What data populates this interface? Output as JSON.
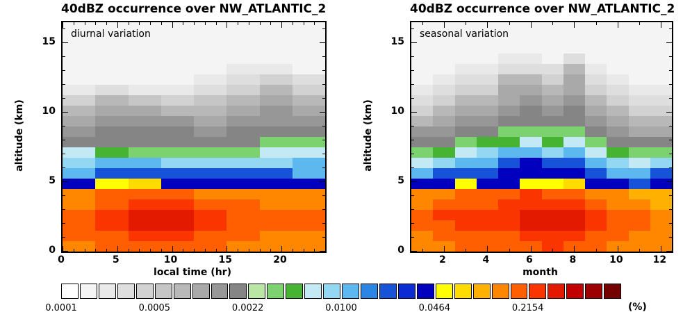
{
  "figure": {
    "background": "#ffffff"
  },
  "colorbar": {
    "scale": "log",
    "tick_labels": [
      "0.0001",
      "0.0005",
      "0.0022",
      "0.0100",
      "0.0464",
      "0.2154"
    ],
    "unit_label": "(%)",
    "value_range": [
      0.0001,
      1.0
    ],
    "colors": [
      "#ffffff",
      "#f4f4f4",
      "#e9e9e9",
      "#dedede",
      "#d2d2d2",
      "#c6c6c6",
      "#b8b8b8",
      "#a9a9a9",
      "#979797",
      "#858585",
      "#b9e6a5",
      "#7cd26e",
      "#46b432",
      "#c3e9f5",
      "#93d7f2",
      "#5cb8ee",
      "#2a86e2",
      "#1753d8",
      "#0b2cd2",
      "#0000be",
      "#ffff00",
      "#ffdc00",
      "#ffb000",
      "#ff8700",
      "#ff5f00",
      "#fb3500",
      "#e31a00",
      "#c30000",
      "#9d0000",
      "#750000"
    ]
  },
  "chart_data": [
    {
      "type": "heatmap",
      "title": "40dBZ occurrence over NW_ATLANTIC_2",
      "annotation": "diurnal variation",
      "xlabel": "local time (hr)",
      "ylabel": "altitude (km)",
      "units": "%",
      "x_range": [
        0,
        24
      ],
      "x_major_ticks": [
        0,
        5,
        10,
        15,
        20
      ],
      "x_minor_step": 1,
      "x_bin_width_hr": 3,
      "y_range": [
        0,
        16.5
      ],
      "y_major_ticks": [
        0,
        5,
        10,
        15
      ],
      "y_minor_step": 1,
      "y_bin_width_km": 0.75,
      "values_rows_bottom_to_top": [
        [
          0.13,
          0.19,
          0.19,
          0.19,
          0.19,
          0.13,
          0.13,
          0.13
        ],
        [
          0.19,
          0.19,
          0.26,
          0.26,
          0.19,
          0.19,
          0.13,
          0.13
        ],
        [
          0.19,
          0.26,
          0.33,
          0.33,
          0.26,
          0.19,
          0.19,
          0.19
        ],
        [
          0.19,
          0.26,
          0.33,
          0.33,
          0.26,
          0.19,
          0.19,
          0.19
        ],
        [
          0.13,
          0.19,
          0.26,
          0.26,
          0.19,
          0.19,
          0.13,
          0.13
        ],
        [
          0.13,
          0.19,
          0.19,
          0.19,
          0.13,
          0.13,
          0.13,
          0.13
        ],
        [
          0.038,
          0.055,
          0.075,
          0.038,
          0.038,
          0.038,
          0.038,
          0.038
        ],
        [
          0.012,
          0.02,
          0.02,
          0.02,
          0.02,
          0.02,
          0.02,
          0.012
        ],
        [
          0.008,
          0.012,
          0.012,
          0.008,
          0.008,
          0.008,
          0.008,
          0.012
        ],
        [
          0.006,
          0.0045,
          0.003,
          0.003,
          0.003,
          0.003,
          0.006,
          0.006
        ],
        [
          0.0018,
          0.0018,
          0.0018,
          0.0018,
          0.0018,
          0.0018,
          0.003,
          0.003
        ],
        [
          0.0013,
          0.0018,
          0.0018,
          0.0018,
          0.0013,
          0.0018,
          0.0018,
          0.0018
        ],
        [
          0.001,
          0.0013,
          0.0013,
          0.0013,
          0.001,
          0.0013,
          0.0013,
          0.0013
        ],
        [
          0.0007,
          0.001,
          0.001,
          0.0007,
          0.0007,
          0.001,
          0.0013,
          0.001
        ],
        [
          0.0004,
          0.0007,
          0.00055,
          0.0004,
          0.00055,
          0.0007,
          0.001,
          0.0007
        ],
        [
          0.00022,
          0.0003,
          0.00022,
          0.00022,
          0.0003,
          0.0004,
          0.0007,
          0.0004
        ],
        [
          0.00016,
          0.00016,
          0.00016,
          0.00016,
          0.00022,
          0.0003,
          0.0004,
          0.0003
        ],
        [
          0.00016,
          0.00016,
          0.00016,
          0.00016,
          0.00016,
          0.00022,
          0.00022,
          0.00016
        ],
        [
          0.00016,
          0.00016,
          0.00016,
          0.00016,
          0.00016,
          0.00016,
          0.00016,
          0.00016
        ],
        [
          0.00016,
          0.00016,
          0.00016,
          0.00016,
          0.00016,
          0.00016,
          0.00016,
          0.00016
        ],
        [
          0.00016,
          0.00016,
          0.00016,
          0.00016,
          0.00016,
          0.00016,
          0.00016,
          0.00016
        ],
        [
          0.00016,
          0.00016,
          0.00016,
          0.00016,
          0.00016,
          0.00016,
          0.00016,
          0.00016
        ]
      ]
    },
    {
      "type": "heatmap",
      "title": "40dBZ occurrence over NW_ATLANTIC_2",
      "annotation": "seasonal variation",
      "xlabel": "month",
      "ylabel": "altitude (km)",
      "units": "%",
      "x_range": [
        0.5,
        12.5
      ],
      "x_major_ticks": [
        2,
        4,
        6,
        8,
        10,
        12
      ],
      "x_minor_step": 1,
      "x_bin_width_month": 1,
      "y_range": [
        0,
        16.5
      ],
      "y_major_ticks": [
        0,
        5,
        10,
        15
      ],
      "y_minor_step": 1,
      "y_bin_width_km": 0.75,
      "values_rows_bottom_to_top": [
        [
          0.13,
          0.13,
          0.19,
          0.19,
          0.19,
          0.19,
          0.26,
          0.19,
          0.19,
          0.13,
          0.13,
          0.13
        ],
        [
          0.13,
          0.19,
          0.19,
          0.19,
          0.19,
          0.26,
          0.26,
          0.26,
          0.19,
          0.19,
          0.13,
          0.13
        ],
        [
          0.19,
          0.19,
          0.26,
          0.26,
          0.26,
          0.33,
          0.33,
          0.33,
          0.26,
          0.19,
          0.19,
          0.13
        ],
        [
          0.19,
          0.26,
          0.26,
          0.26,
          0.26,
          0.33,
          0.33,
          0.33,
          0.26,
          0.19,
          0.19,
          0.13
        ],
        [
          0.13,
          0.19,
          0.19,
          0.19,
          0.26,
          0.26,
          0.26,
          0.26,
          0.19,
          0.13,
          0.13,
          0.1
        ],
        [
          0.13,
          0.13,
          0.19,
          0.19,
          0.19,
          0.26,
          0.19,
          0.19,
          0.13,
          0.13,
          0.1,
          0.1
        ],
        [
          0.038,
          0.038,
          0.055,
          0.038,
          0.038,
          0.055,
          0.055,
          0.075,
          0.038,
          0.038,
          0.02,
          0.038
        ],
        [
          0.012,
          0.02,
          0.02,
          0.02,
          0.038,
          0.038,
          0.038,
          0.038,
          0.02,
          0.012,
          0.012,
          0.02
        ],
        [
          0.006,
          0.008,
          0.012,
          0.012,
          0.02,
          0.038,
          0.02,
          0.02,
          0.012,
          0.008,
          0.006,
          0.008
        ],
        [
          0.003,
          0.0045,
          0.006,
          0.008,
          0.012,
          0.012,
          0.008,
          0.012,
          0.006,
          0.0045,
          0.003,
          0.003
        ],
        [
          0.0018,
          0.0018,
          0.003,
          0.0045,
          0.0045,
          0.006,
          0.0045,
          0.006,
          0.003,
          0.0018,
          0.0018,
          0.0018
        ],
        [
          0.0013,
          0.0013,
          0.0018,
          0.0018,
          0.003,
          0.003,
          0.003,
          0.003,
          0.0018,
          0.0013,
          0.001,
          0.001
        ],
        [
          0.0007,
          0.001,
          0.0013,
          0.0013,
          0.0018,
          0.0018,
          0.0018,
          0.0018,
          0.0013,
          0.001,
          0.0007,
          0.0007
        ],
        [
          0.0004,
          0.0007,
          0.001,
          0.001,
          0.0013,
          0.0018,
          0.0013,
          0.0018,
          0.001,
          0.0007,
          0.0004,
          0.0004
        ],
        [
          0.0003,
          0.0004,
          0.0007,
          0.0007,
          0.001,
          0.0013,
          0.001,
          0.0013,
          0.0007,
          0.0004,
          0.0003,
          0.0003
        ],
        [
          0.00022,
          0.0003,
          0.0004,
          0.0004,
          0.001,
          0.001,
          0.0007,
          0.001,
          0.0004,
          0.0003,
          0.00022,
          0.00022
        ],
        [
          0.00016,
          0.00022,
          0.0003,
          0.0003,
          0.0007,
          0.0007,
          0.0004,
          0.001,
          0.0003,
          0.00022,
          0.00016,
          0.00016
        ],
        [
          0.00016,
          0.00016,
          0.00022,
          0.00022,
          0.0003,
          0.0003,
          0.0003,
          0.0007,
          0.00022,
          0.00016,
          0.00016,
          0.00016
        ],
        [
          0.00016,
          0.00016,
          0.00016,
          0.00016,
          0.00022,
          0.00022,
          0.00016,
          0.0003,
          0.00016,
          0.00016,
          0.00016,
          0.00016
        ],
        [
          0.00016,
          0.00016,
          0.00016,
          0.00016,
          0.00016,
          0.00016,
          0.00016,
          0.00016,
          0.00016,
          0.00016,
          0.00016,
          0.00016
        ],
        [
          0.00016,
          0.00016,
          0.00016,
          0.00016,
          0.00016,
          0.00016,
          0.00016,
          0.00016,
          0.00016,
          0.00016,
          0.00016,
          0.00016
        ],
        [
          0.00016,
          0.00016,
          0.00016,
          0.00016,
          0.00016,
          0.00016,
          0.00016,
          0.00016,
          0.00016,
          0.00016,
          0.00016,
          0.00016
        ]
      ]
    }
  ]
}
